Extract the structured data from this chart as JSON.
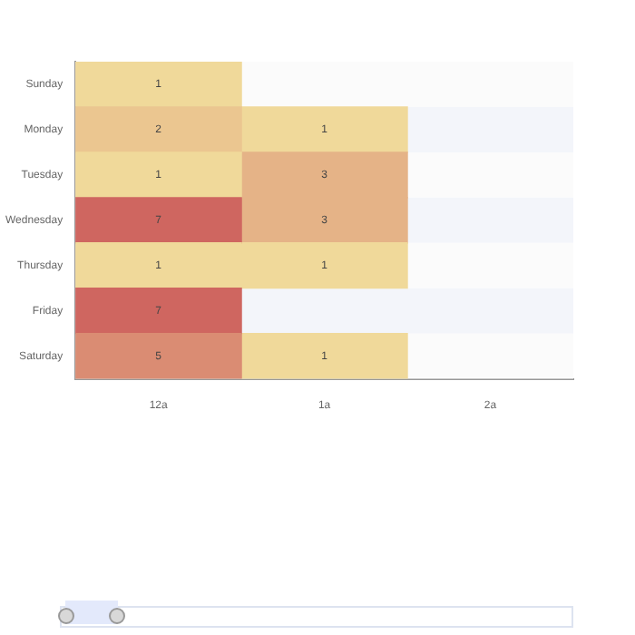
{
  "chart_data": {
    "type": "heatmap",
    "categories": [
      "12a",
      "1a",
      "2a"
    ],
    "y_categories": [
      "Sunday",
      "Monday",
      "Tuesday",
      "Wednesday",
      "Thursday",
      "Friday",
      "Saturday"
    ],
    "cells": [
      [
        1,
        null,
        null
      ],
      [
        2,
        1,
        null
      ],
      [
        1,
        3,
        null
      ],
      [
        7,
        3,
        null
      ],
      [
        1,
        1,
        null
      ],
      [
        7,
        null,
        null
      ],
      [
        5,
        1,
        null
      ]
    ],
    "data_labels": true
  }
}
